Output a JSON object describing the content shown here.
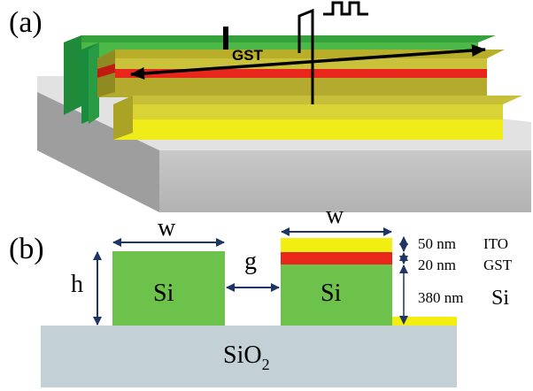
{
  "panel_a": {
    "label": "(a)",
    "current_symbol": "I",
    "current_subscript": "GST"
  },
  "panel_b": {
    "label": "(b)",
    "width_label": "w",
    "width_label_right": "w",
    "height_label": "h",
    "gap_label": "g",
    "left_core_label": "Si",
    "right_core_label": "Si",
    "substrate_label": "SiO",
    "substrate_subscript": "2",
    "layers": [
      {
        "thickness": "50 nm",
        "material": "ITO"
      },
      {
        "thickness": "20 nm",
        "material": "GST"
      },
      {
        "thickness": "380 nm",
        "material": "Si"
      }
    ]
  },
  "colors": {
    "silicon": "#6cc24a",
    "silicon_dark": "#3f9e3a",
    "ito": "#f2ee12",
    "ito_top": "#b3ac22",
    "gst": "#e8261c",
    "substrate_top": "#e8e8e8",
    "substrate_front": "#bdbdbd",
    "substrate_side": "#9a9a9a",
    "substrate_2d": "#c3d1d6",
    "arrow": "#1f3566"
  }
}
